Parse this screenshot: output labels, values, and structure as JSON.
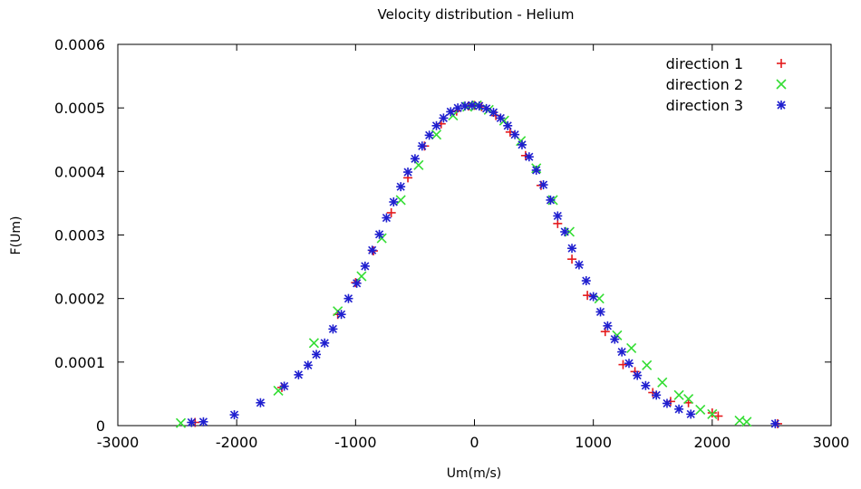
{
  "chart_data": {
    "type": "scatter",
    "title": "Velocity distribution - Helium",
    "xlabel": "Um(m/s)",
    "ylabel": "F(Um)",
    "xlim": [
      -3000,
      3000
    ],
    "ylim": [
      0,
      0.0006
    ],
    "xticks": [
      "-3000",
      "-2000",
      "-1000",
      "0",
      "1000",
      "2000",
      "3000"
    ],
    "yticks": [
      "0",
      "0.0001",
      "0.0002",
      "0.0003",
      "0.0004",
      "0.0005",
      "0.0006"
    ],
    "legend_position": "top-right",
    "grid": false,
    "series": [
      {
        "name": "direction 1",
        "marker": "plus",
        "color": "#e41a1c",
        "x": [
          -2350,
          -1620,
          -1150,
          -1000,
          -850,
          -700,
          -560,
          -420,
          -280,
          -150,
          -50,
          0,
          60,
          180,
          300,
          430,
          560,
          700,
          820,
          950,
          1100,
          1250,
          1350,
          1500,
          1650,
          1800,
          2000,
          2050,
          2550
        ],
        "y": [
          5e-06,
          6e-05,
          0.000175,
          0.000225,
          0.000275,
          0.000335,
          0.00039,
          0.00044,
          0.000475,
          0.000495,
          0.000503,
          0.000504,
          0.000502,
          0.000488,
          0.000462,
          0.000425,
          0.000378,
          0.000318,
          0.000262,
          0.000205,
          0.000148,
          9.6e-05,
          8.5e-05,
          5.2e-05,
          3.8e-05,
          3.6e-05,
          2e-05,
          1.5e-05,
          3e-06
        ]
      },
      {
        "name": "direction 2",
        "marker": "cross",
        "color": "#33dd33",
        "x": [
          -2470,
          -1650,
          -1350,
          -1150,
          -950,
          -780,
          -620,
          -470,
          -320,
          -180,
          -60,
          20,
          120,
          250,
          390,
          520,
          660,
          800,
          1050,
          1200,
          1320,
          1450,
          1580,
          1720,
          1800,
          1900,
          2000,
          2230,
          2290
        ],
        "y": [
          4e-06,
          5.5e-05,
          0.00013,
          0.00018,
          0.000235,
          0.000295,
          0.000355,
          0.00041,
          0.000458,
          0.000488,
          0.000502,
          0.000504,
          0.000497,
          0.00048,
          0.000448,
          0.000405,
          0.000355,
          0.000305,
          0.0002,
          0.000142,
          0.000122,
          9.5e-05,
          6.8e-05,
          4.8e-05,
          4.2e-05,
          2.5e-05,
          1.8e-05,
          8e-06,
          6e-06
        ]
      },
      {
        "name": "direction 3",
        "marker": "star",
        "color": "#1f1fcf",
        "x": [
          -2380,
          -2280,
          -2020,
          -1800,
          -1600,
          -1480,
          -1400,
          -1330,
          -1260,
          -1190,
          -1120,
          -1060,
          -990,
          -920,
          -860,
          -800,
          -740,
          -680,
          -620,
          -560,
          -500,
          -440,
          -380,
          -320,
          -260,
          -200,
          -140,
          -80,
          -20,
          40,
          100,
          160,
          220,
          280,
          340,
          400,
          460,
          520,
          580,
          640,
          700,
          760,
          820,
          880,
          940,
          1000,
          1060,
          1120,
          1180,
          1240,
          1300,
          1370,
          1440,
          1530,
          1620,
          1720,
          1820,
          2530
        ],
        "y": [
          5e-06,
          6e-06,
          1.7e-05,
          3.6e-05,
          6.2e-05,
          8e-05,
          9.5e-05,
          0.000112,
          0.00013,
          0.000152,
          0.000175,
          0.0002,
          0.000224,
          0.000251,
          0.000276,
          0.000301,
          0.000327,
          0.000352,
          0.000376,
          0.000399,
          0.00042,
          0.00044,
          0.000457,
          0.000472,
          0.000484,
          0.000494,
          0.0005,
          0.000503,
          0.000504,
          0.000503,
          0.000499,
          0.000493,
          0.000484,
          0.000472,
          0.000458,
          0.000442,
          0.000423,
          0.000402,
          0.000379,
          0.000355,
          0.00033,
          0.000305,
          0.000279,
          0.000253,
          0.000228,
          0.000203,
          0.000179,
          0.000157,
          0.000136,
          0.000116,
          9.8e-05,
          7.9e-05,
          6.3e-05,
          4.8e-05,
          3.5e-05,
          2.6e-05,
          1.8e-05,
          3e-06
        ]
      }
    ]
  }
}
